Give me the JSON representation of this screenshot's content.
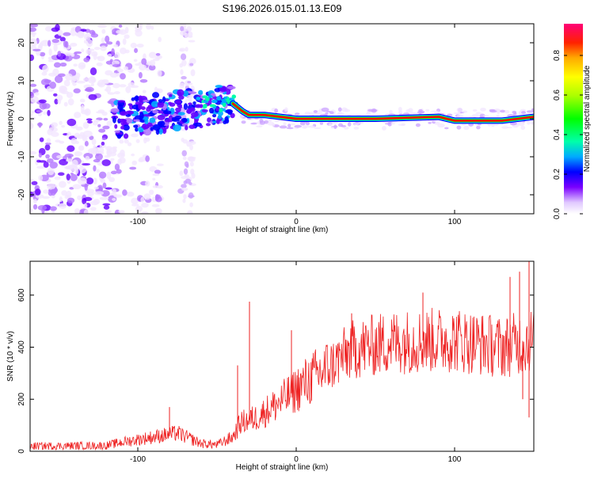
{
  "figure_title": "S196.2026.015.01.13.E09",
  "chart_data": [
    {
      "type": "heatmap",
      "id": "spectrogram",
      "xlabel": "Height of straight line (km)",
      "ylabel": "Frequency (Hz)",
      "xlim": [
        -168,
        150
      ],
      "ylim": [
        -25,
        25
      ],
      "xticks": [
        -100,
        0,
        100
      ],
      "yticks": [
        -20,
        -10,
        0,
        10,
        20
      ],
      "colorbar": {
        "label": "Normalized spectral amplitude",
        "range": [
          0,
          0.96
        ],
        "ticks": [
          0.0,
          0.2,
          0.4,
          0.6,
          0.8
        ],
        "colors": [
          "#f2e6ff",
          "#6600ff",
          "#0000ff",
          "#00aaff",
          "#00ffaa",
          "#00ff00",
          "#aaff00",
          "#ffff00",
          "#ffaa00",
          "#ff0000",
          "#ff0066"
        ]
      },
      "ridge": [
        {
          "x": -40,
          "y": 4
        },
        {
          "x": -34,
          "y": 2
        },
        {
          "x": -30,
          "y": 1
        },
        {
          "x": -20,
          "y": 1
        },
        {
          "x": 0,
          "y": 0
        },
        {
          "x": 50,
          "y": 0
        },
        {
          "x": 90,
          "y": 0.5
        },
        {
          "x": 100,
          "y": -0.5
        },
        {
          "x": 130,
          "y": -0.5
        },
        {
          "x": 150,
          "y": 0.5
        }
      ]
    },
    {
      "type": "line",
      "id": "snr",
      "xlabel": "Height of straight line (km)",
      "ylabel": "SNR (10 * v/v)",
      "xlim": [
        -168,
        150
      ],
      "ylim": [
        0,
        730
      ],
      "xticks": [
        -100,
        0,
        100
      ],
      "yticks": [
        0,
        200,
        400,
        600
      ],
      "color": "#ee2222",
      "envelope": [
        {
          "x": -168,
          "y": 20
        },
        {
          "x": -120,
          "y": 22
        },
        {
          "x": -110,
          "y": 35
        },
        {
          "x": -90,
          "y": 55
        },
        {
          "x": -75,
          "y": 70
        },
        {
          "x": -60,
          "y": 30
        },
        {
          "x": -50,
          "y": 25
        },
        {
          "x": -40,
          "y": 55
        },
        {
          "x": -35,
          "y": 110
        },
        {
          "x": -25,
          "y": 130
        },
        {
          "x": -10,
          "y": 190
        },
        {
          "x": 5,
          "y": 260
        },
        {
          "x": 20,
          "y": 320
        },
        {
          "x": 35,
          "y": 390
        },
        {
          "x": 60,
          "y": 420
        },
        {
          "x": 100,
          "y": 430
        },
        {
          "x": 130,
          "y": 400
        },
        {
          "x": 150,
          "y": 430
        }
      ],
      "spikes": [
        {
          "x": -29.5,
          "y": 575
        },
        {
          "x": -37,
          "y": 330
        },
        {
          "x": -80,
          "y": 170
        },
        {
          "x": -3,
          "y": 465
        },
        {
          "x": 35,
          "y": 530
        },
        {
          "x": 80,
          "y": 610
        },
        {
          "x": 141,
          "y": 690
        },
        {
          "x": 147,
          "y": 730
        },
        {
          "x": 135,
          "y": 670
        },
        {
          "x": 143,
          "y": 200
        },
        {
          "x": 147,
          "y": 130
        }
      ]
    }
  ]
}
